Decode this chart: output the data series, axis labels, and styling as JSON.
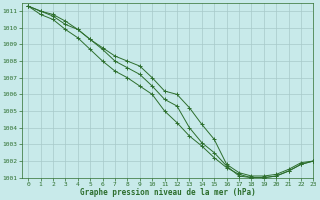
{
  "title": "Graphe pression niveau de la mer (hPa)",
  "background_color": "#c8eaea",
  "grid_color": "#a8caca",
  "line_color": "#2d6e2d",
  "marker": "+",
  "xlim": [
    -0.5,
    23
  ],
  "ylim": [
    1001,
    1011.5
  ],
  "xticks": [
    0,
    1,
    2,
    3,
    4,
    5,
    6,
    7,
    8,
    9,
    10,
    11,
    12,
    13,
    14,
    15,
    16,
    17,
    18,
    19,
    20,
    21,
    22,
    23
  ],
  "yticks": [
    1001,
    1002,
    1003,
    1004,
    1005,
    1006,
    1007,
    1008,
    1009,
    1010,
    1011
  ],
  "series": [
    [
      1011.3,
      1011.0,
      1010.8,
      1010.4,
      1009.9,
      1009.3,
      1008.8,
      1008.3,
      1008.0,
      1007.7,
      1007.0,
      1006.2,
      1006.0,
      1005.2,
      1004.2,
      1003.3,
      1001.8,
      1001.3,
      1001.1,
      1001.1,
      1001.2,
      1001.5,
      1001.9,
      1002.0
    ],
    [
      1011.3,
      1010.8,
      1010.5,
      1009.9,
      1009.4,
      1008.7,
      1008.0,
      1007.4,
      1007.0,
      1006.5,
      1006.0,
      1005.0,
      1004.3,
      1003.5,
      1002.9,
      1002.2,
      1001.6,
      1001.2,
      1001.0,
      1001.0,
      1001.1,
      1001.4,
      1001.8,
      1002.0
    ],
    [
      1011.3,
      1011.0,
      1010.7,
      1010.2,
      1009.9,
      1009.3,
      1008.7,
      1008.0,
      1007.6,
      1007.2,
      1006.5,
      1005.7,
      1005.3,
      1004.0,
      1003.1,
      1002.5,
      1001.7,
      1001.1,
      1001.0,
      1001.0,
      1001.1,
      1001.4,
      1001.8,
      1002.0
    ]
  ]
}
